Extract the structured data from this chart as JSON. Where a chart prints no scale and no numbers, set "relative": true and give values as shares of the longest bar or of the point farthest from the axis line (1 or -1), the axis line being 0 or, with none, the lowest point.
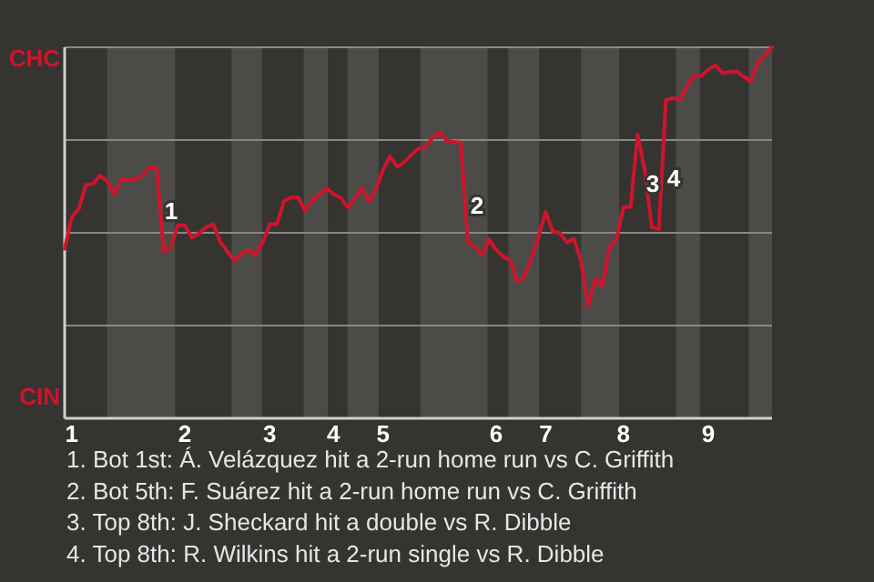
{
  "chart_data": {
    "type": "line",
    "relative": true,
    "categories": [
      null,
      "1",
      null,
      null,
      null,
      null,
      null,
      null,
      null,
      null,
      null,
      null,
      null,
      null,
      null,
      null,
      null,
      "2",
      null,
      null,
      null,
      null,
      null,
      null,
      null,
      null,
      null,
      null,
      null,
      "3",
      null,
      null,
      null,
      null,
      null,
      null,
      null,
      null,
      "4",
      null,
      null,
      null,
      null,
      null,
      null,
      "5",
      null,
      null,
      null,
      null,
      null,
      null,
      null,
      null,
      null,
      null,
      null,
      null,
      null,
      null,
      null,
      "6",
      null,
      null,
      null,
      null,
      null,
      null,
      "7",
      null,
      null,
      null,
      null,
      null,
      null,
      null,
      null,
      null,
      null,
      "8",
      null,
      null,
      null,
      null,
      null,
      null,
      null,
      null,
      null,
      null,
      null,
      "9",
      null,
      null,
      null,
      null,
      null,
      null,
      null,
      null,
      null
    ],
    "series": [
      {
        "color": "#d0142c",
        "values": [
          0.457,
          0.542,
          0.564,
          0.629,
          0.632,
          0.654,
          0.64,
          0.604,
          0.644,
          0.644,
          0.644,
          0.655,
          0.676,
          0.676,
          0.45,
          0.46,
          0.52,
          0.52,
          0.487,
          0.498,
          0.515,
          0.523,
          0.476,
          0.45,
          0.425,
          0.443,
          0.454,
          0.441,
          0.474,
          0.523,
          0.523,
          0.585,
          0.595,
          0.595,
          0.559,
          0.588,
          0.602,
          0.621,
          0.604,
          0.595,
          0.569,
          0.59,
          0.621,
          0.585,
          0.617,
          0.669,
          0.706,
          0.678,
          0.69,
          0.71,
          0.727,
          0.73,
          0.756,
          0.771,
          0.748,
          0.745,
          0.743,
          0.474,
          0.461,
          0.441,
          0.482,
          0.455,
          0.437,
          0.425,
          0.367,
          0.382,
          0.432,
          0.49,
          0.556,
          0.503,
          0.5,
          0.474,
          0.484,
          0.424,
          0.302,
          0.376,
          0.356,
          0.461,
          0.482,
          0.569,
          0.569,
          0.765,
          0.67,
          0.515,
          0.51,
          0.858,
          0.863,
          0.858,
          0.896,
          0.923,
          0.923,
          0.94,
          0.951,
          0.931,
          0.933,
          0.935,
          0.921,
          0.908,
          0.959,
          0.98,
          1
        ],
        "line_style": "solid"
      }
    ],
    "grid": "y",
    "annotations": [
      "CHC",
      "CIN",
      "1",
      "2",
      "3",
      "4",
      "1. Bot 1st: Á. Velázquez hit a 2-run home run vs C. Griffith",
      "2. Bot 5th: F. Suárez hit a 2-run home run vs C. Griffith",
      "3. Top 8th: J. Sheckard hit a double vs R. Dibble",
      "4. Top 8th: R. Wilkins hit a 2-run single vs R. Dibble"
    ],
    "marker": "none"
  }
}
